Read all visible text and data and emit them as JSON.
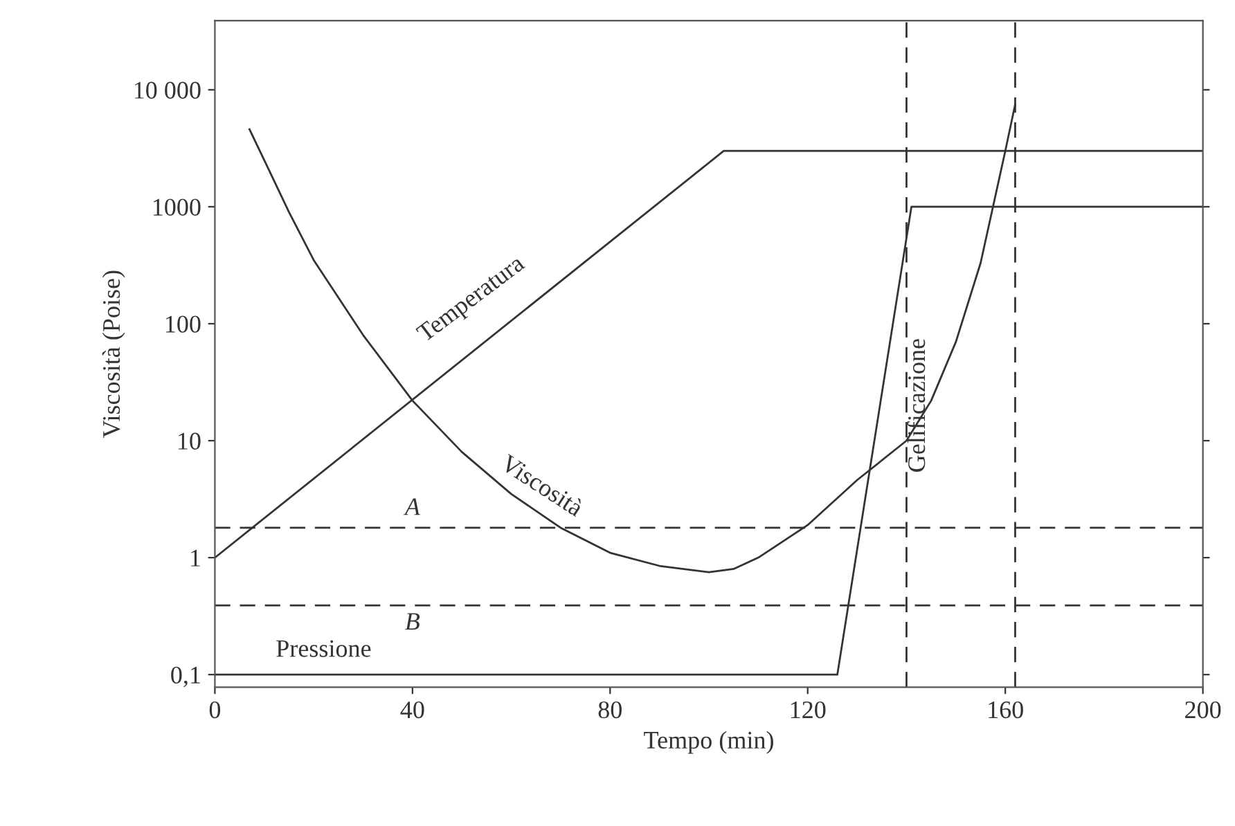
{
  "chart_data": {
    "type": "line",
    "xlabel": "Tempo (min)",
    "ylabel": "Viscosità (Poise)",
    "log": "y",
    "xlim": [
      0,
      200
    ],
    "xticks": [
      0,
      40,
      80,
      120,
      160,
      200
    ],
    "ylim": [
      0.078,
      39000
    ],
    "yticks": [
      {
        "value": 0.1,
        "label": "0,1"
      },
      1,
      10,
      100,
      1000,
      {
        "value": 10000,
        "label": "10 000"
      }
    ],
    "grid": false,
    "marker": "none",
    "line_style": "solid",
    "series": [
      {
        "name": "Temperatura",
        "color": "#333333",
        "x": [
          0,
          103,
          200
        ],
        "values": [
          1,
          3000,
          3000
        ]
      },
      {
        "name": "Viscosità",
        "color": "#333333",
        "x": [
          7,
          10,
          15,
          20,
          30,
          40,
          50,
          60,
          70,
          80,
          90,
          100,
          105,
          110,
          120,
          130,
          140,
          145,
          150,
          155,
          160,
          162
        ],
        "values": [
          4600,
          2500,
          900,
          350,
          80,
          22,
          8,
          3.5,
          1.8,
          1.1,
          0.85,
          0.75,
          0.8,
          1.0,
          1.9,
          4.6,
          10,
          22,
          70,
          330,
          3000,
          7500
        ]
      },
      {
        "name": "Pressione",
        "color": "#333333",
        "x": [
          0,
          126,
          141,
          200
        ],
        "values": [
          0.1,
          0.1,
          1000,
          1000
        ]
      }
    ],
    "ref_lines": [
      {
        "axis": "y",
        "value": 1.8,
        "label": "A",
        "line_style": "dashed",
        "color": "#333333"
      },
      {
        "axis": "y",
        "value": 0.39,
        "label": "B",
        "line_style": "dashed",
        "color": "#333333"
      },
      {
        "axis": "x",
        "value": 140,
        "label": "Gelificazione",
        "line_style": "dashed",
        "color": "#333333"
      },
      {
        "axis": "x",
        "value": 162,
        "line_style": "dashed",
        "color": "#333333"
      }
    ]
  }
}
